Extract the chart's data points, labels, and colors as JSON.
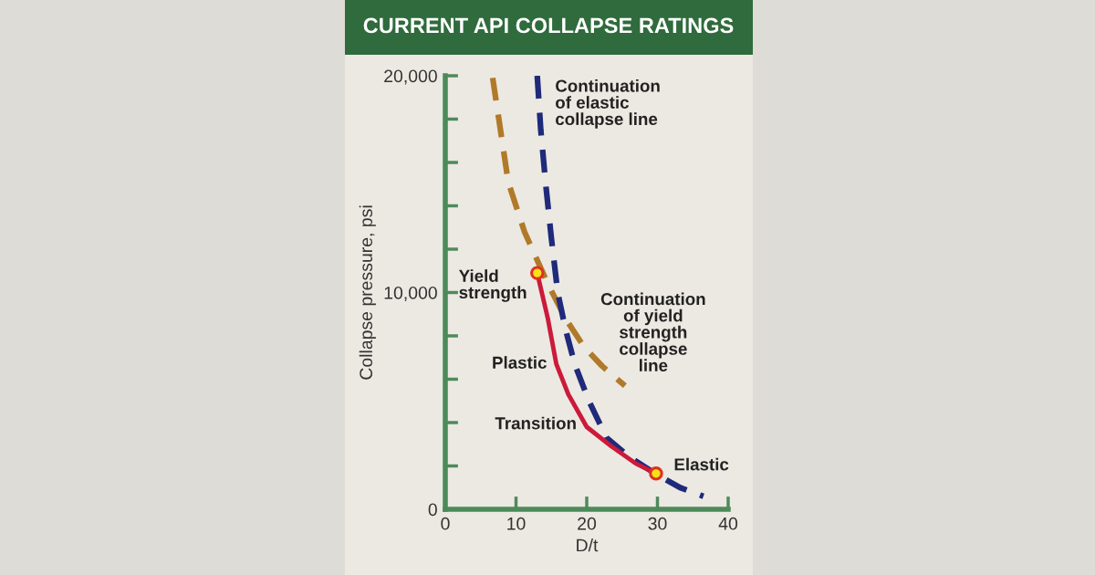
{
  "chart_data": {
    "type": "line",
    "title": "CURRENT API COLLAPSE RATINGS",
    "xlabel": "D/t",
    "ylabel": "Collapse pressure, psi",
    "xlim": [
      0,
      40
    ],
    "xticks": [
      0,
      10,
      20,
      30,
      40
    ],
    "ylim": [
      0,
      20000
    ],
    "yticks": [
      {
        "value": 0,
        "label": "0"
      },
      {
        "value": 2000,
        "label": null
      },
      {
        "value": 4000,
        "label": null
      },
      {
        "value": 6000,
        "label": null
      },
      {
        "value": 8000,
        "label": null
      },
      {
        "value": 10000,
        "label": "10,000"
      },
      {
        "value": 12000,
        "label": null
      },
      {
        "value": 14000,
        "label": null
      },
      {
        "value": 16000,
        "label": null
      },
      {
        "value": 18000,
        "label": null
      },
      {
        "value": 20000,
        "label": "20,000"
      }
    ],
    "grid": false,
    "legend": false,
    "series": [
      {
        "line_style": "dashed",
        "color": "#b07a2a",
        "x": [
          6.7,
          8.9,
          11.2,
          14.5,
          17,
          19.6,
          22.2,
          25.4
        ],
        "values": [
          19900,
          15100,
          12800,
          10400,
          8800,
          7500,
          6600,
          5700
        ]
      },
      {
        "line_style": "dashed",
        "color": "#1f2a7a",
        "x": [
          13.0,
          13.5,
          14.2,
          15.0,
          15.9,
          17,
          18.3,
          20.3,
          22.8,
          26.1,
          29.9,
          33.2,
          36.5
        ],
        "values": [
          20000,
          17500,
          15000,
          12500,
          10000,
          8300,
          6700,
          5000,
          3300,
          2400,
          1600,
          1000,
          600
        ]
      },
      {
        "line_style": "solid",
        "color": "#cc1a3a",
        "x": [
          13,
          14.5,
          15.7,
          17.4,
          20,
          23.5,
          27,
          29.8
        ],
        "values": [
          10900,
          8800,
          6700,
          5300,
          3800,
          2900,
          2100,
          1650
        ]
      },
      {
        "type": "scatter",
        "marker": "circle",
        "color": "#f5e11a",
        "x": [
          13,
          29.8
        ],
        "values": [
          10900,
          1650
        ]
      }
    ],
    "annotations": [
      "Continuation\nof elastic\ncollapse line",
      {
        "text": "Yield\nstrength",
        "x": 13,
        "y": 10900
      },
      "Continuation\nof yield\nstrength\ncollapse\nline",
      "Plastic",
      "Transition",
      {
        "text": "Elastic",
        "x": 29.8,
        "y": 1650
      }
    ]
  }
}
